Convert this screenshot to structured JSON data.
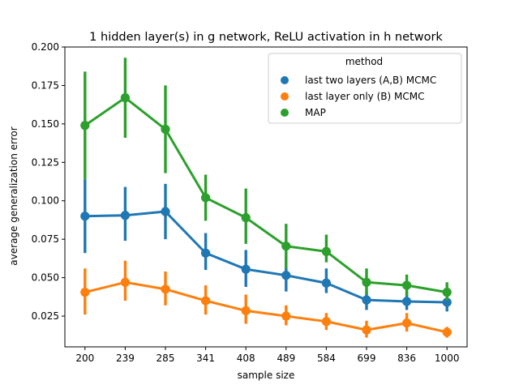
{
  "chart_data": {
    "type": "line",
    "title": "1 hidden layer(s) in g network, ReLU activation in h network",
    "xlabel": "sample size",
    "ylabel": "average generalization error",
    "categories": [
      "200",
      "239",
      "285",
      "341",
      "408",
      "489",
      "584",
      "699",
      "836",
      "1000"
    ],
    "ylim": [
      0.005,
      0.2
    ],
    "yticks": [
      0.025,
      0.05,
      0.075,
      0.1,
      0.125,
      0.15,
      0.175,
      0.2
    ],
    "ytick_labels": [
      "0.025",
      "0.050",
      "0.075",
      "0.100",
      "0.125",
      "0.150",
      "0.175",
      "0.200"
    ],
    "legend": {
      "title": "method",
      "position": "top-right"
    },
    "series": [
      {
        "name": "last two layers (A,B) MCMC",
        "color": "#1f77b4",
        "values": [
          0.09,
          0.0905,
          0.093,
          0.066,
          0.0555,
          0.0515,
          0.0465,
          0.0355,
          0.0345,
          0.034
        ],
        "lower": [
          0.066,
          0.074,
          0.075,
          0.055,
          0.044,
          0.041,
          0.04,
          0.029,
          0.029,
          0.028
        ],
        "upper": [
          0.114,
          0.109,
          0.111,
          0.079,
          0.068,
          0.064,
          0.056,
          0.041,
          0.041,
          0.039
        ]
      },
      {
        "name": "last layer only (B) MCMC",
        "color": "#ff7f0e",
        "values": [
          0.0405,
          0.047,
          0.0425,
          0.035,
          0.0285,
          0.025,
          0.0215,
          0.016,
          0.0205,
          0.0145
        ],
        "lower": [
          0.026,
          0.035,
          0.032,
          0.026,
          0.02,
          0.019,
          0.016,
          0.011,
          0.015,
          0.011
        ],
        "upper": [
          0.056,
          0.061,
          0.054,
          0.045,
          0.039,
          0.032,
          0.027,
          0.022,
          0.027,
          0.018
        ]
      },
      {
        "name": "MAP",
        "color": "#2ca02c",
        "values": [
          0.149,
          0.167,
          0.1465,
          0.102,
          0.089,
          0.0705,
          0.067,
          0.047,
          0.045,
          0.0405
        ],
        "lower": [
          0.114,
          0.141,
          0.118,
          0.087,
          0.072,
          0.056,
          0.06,
          0.039,
          0.038,
          0.035
        ],
        "upper": [
          0.184,
          0.193,
          0.175,
          0.117,
          0.108,
          0.085,
          0.078,
          0.056,
          0.052,
          0.047
        ]
      }
    ]
  }
}
